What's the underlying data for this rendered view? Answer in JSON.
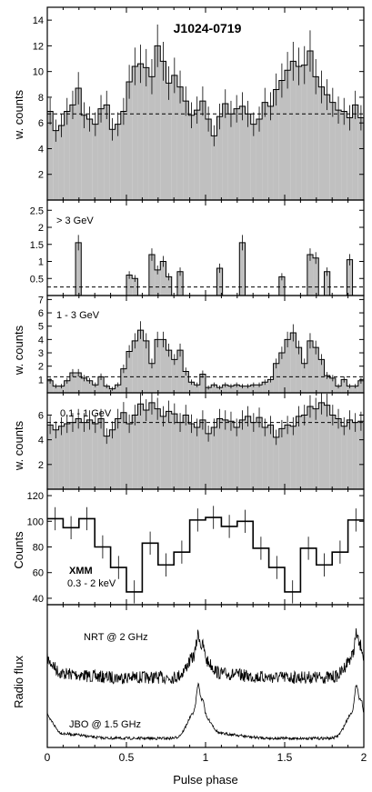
{
  "figure": {
    "title": "J1024-0719",
    "xlabel": "Pulse phase",
    "x_ticks": [
      "0",
      "0.5",
      "1",
      "1.5",
      "2"
    ],
    "fill_color": "#c0c0c0",
    "line_color": "#000000"
  },
  "chart_data": [
    {
      "type": "bar",
      "name": "gamma_all",
      "title": "J1024-0719",
      "label": "",
      "ylabel": "w. counts",
      "ylim": [
        0,
        15
      ],
      "yticks": [
        2,
        4,
        6,
        8,
        10,
        12,
        14
      ],
      "baseline": 6.7,
      "values": [
        6.9,
        5.4,
        5.8,
        6.9,
        7.4,
        8.7,
        6.6,
        6.3,
        5.9,
        7.1,
        7.4,
        5.5,
        5.9,
        6.9,
        9.2,
        10.4,
        10.6,
        10.3,
        9.6,
        12.0,
        10.8,
        9.1,
        9.7,
        8.8,
        7.7,
        6.6,
        7.0,
        7.7,
        6.3,
        5.0,
        6.5,
        7.5,
        6.7,
        7.1,
        7.3,
        6.7,
        5.9,
        6.3,
        7.6,
        7.3,
        8.6,
        9.3,
        10.1,
        10.8,
        10.4,
        10.5,
        11.6,
        9.6,
        8.8,
        8.2,
        7.6,
        7.0,
        6.9,
        6.4,
        7.4,
        6.4
      ]
    },
    {
      "type": "bar",
      "name": "gamma_gt3",
      "label": "> 3 GeV",
      "ylabel": "",
      "ylim": [
        0,
        2.8
      ],
      "yticks": [
        0.5,
        1,
        1.5,
        2,
        2.5
      ],
      "baseline": 0.25,
      "values": [
        0,
        0,
        0,
        0,
        0,
        1.55,
        0,
        0,
        0,
        0,
        0,
        0,
        0,
        0,
        0.6,
        0.5,
        0,
        0,
        1.2,
        0.75,
        1.0,
        0.55,
        0,
        0.7,
        0,
        0,
        0,
        0,
        0,
        0,
        0.8,
        0,
        0,
        0,
        1.55,
        0,
        0,
        0,
        0,
        0,
        0,
        0.55,
        0,
        0,
        0,
        0,
        1.2,
        1.1,
        0,
        0.7,
        0,
        0,
        0,
        1.05,
        0,
        0
      ]
    },
    {
      "type": "bar",
      "name": "gamma_1_3",
      "label": "1 - 3 GeV",
      "ylabel": "w. counts",
      "ylim": [
        0,
        7.3
      ],
      "yticks": [
        1,
        2,
        3,
        4,
        5,
        6,
        7
      ],
      "baseline": 1.2,
      "values": [
        0.9,
        0.5,
        0.5,
        0.9,
        1.5,
        1.5,
        1.1,
        0.9,
        0.6,
        1.2,
        0.5,
        0.3,
        0.6,
        1.8,
        3.1,
        3.9,
        4.7,
        3.9,
        2.2,
        4.0,
        4.0,
        3.2,
        2.5,
        3.2,
        1.6,
        0.8,
        0.6,
        1.4,
        0.4,
        0.6,
        0.4,
        0.6,
        0.5,
        0.6,
        0.5,
        0.5,
        0.6,
        0.6,
        0.8,
        1.0,
        2.2,
        3.0,
        4.0,
        4.5,
        3.4,
        2.2,
        3.9,
        3.4,
        2.5,
        1.3,
        1.1,
        0.5,
        1.0,
        0.5,
        0.5,
        0.9
      ]
    },
    {
      "type": "bar",
      "name": "gamma_01_1",
      "label": "0.1 - 1 GeV",
      "ylabel": "w. counts",
      "ylim": [
        0,
        7.8
      ],
      "yticks": [
        2,
        4,
        6
      ],
      "baseline": 5.4,
      "values": [
        5.2,
        4.8,
        5.1,
        5.3,
        5.4,
        5.7,
        5.4,
        5.6,
        5.3,
        5.7,
        4.3,
        4.8,
        5.7,
        6.2,
        5.3,
        6.0,
        6.9,
        6.4,
        7.0,
        6.5,
        5.9,
        6.3,
        6.1,
        5.4,
        6.0,
        5.3,
        5.0,
        5.6,
        4.5,
        5.0,
        5.7,
        5.6,
        5.5,
        5.0,
        5.6,
        5.9,
        5.4,
        5.8,
        5.0,
        5.2,
        4.2,
        4.9,
        5.2,
        5.1,
        5.9,
        6.0,
        6.7,
        6.5,
        7.0,
        6.8,
        6.0,
        5.7,
        5.1,
        5.6,
        5.4,
        5.5
      ]
    },
    {
      "type": "line",
      "name": "xmm",
      "label": "XMM",
      "sublabel": "0.3 - 2 keV",
      "ylabel": "Counts",
      "ylim": [
        35,
        125
      ],
      "yticks": [
        40,
        60,
        80,
        100,
        120
      ],
      "values": [
        102,
        95,
        102,
        80,
        64,
        45,
        83,
        66,
        76,
        101,
        103,
        96,
        100,
        79,
        64,
        45,
        79,
        66,
        76,
        101
      ]
    },
    {
      "type": "line",
      "name": "radio",
      "ylabel": "Radio flux",
      "series": [
        {
          "name": "NRT @ 2 GHz",
          "label": "NRT @ 2 GHz"
        },
        {
          "name": "JBO @ 1.5 GHz",
          "label": "JBO @ 1.5 GHz"
        }
      ]
    }
  ]
}
